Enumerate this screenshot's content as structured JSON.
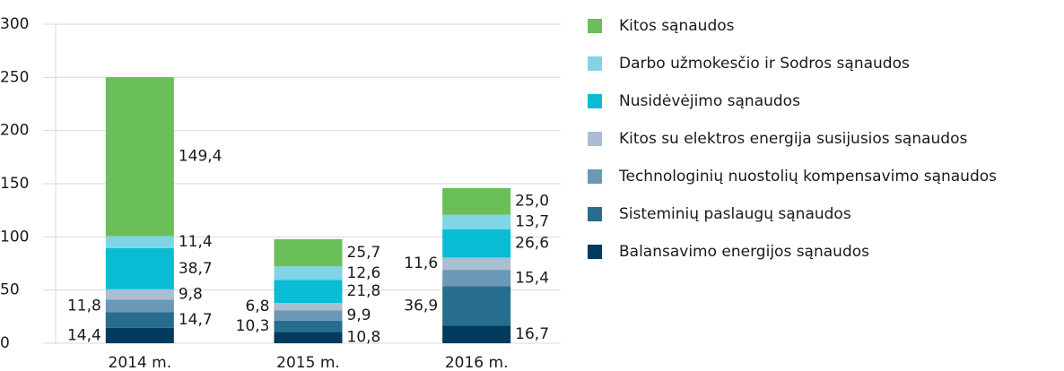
{
  "chart_data": {
    "type": "bar",
    "stacked": true,
    "categories": [
      "2014 m.",
      "2015 m.",
      "2016 m."
    ],
    "series": [
      {
        "name": "Balansavimo energijos sąnaudos",
        "color": "#003a5c",
        "values": [
          14.4,
          10.8,
          16.7
        ],
        "value_labels": [
          "14,4",
          "10,8",
          "16,7"
        ]
      },
      {
        "name": "Sisteminių paslaugų sąnaudos",
        "color": "#276e8e",
        "values": [
          14.7,
          10.3,
          36.9
        ],
        "value_labels": [
          "14,7",
          "10,3",
          "36,9"
        ]
      },
      {
        "name": "Technologinių nuostolių kompensavimo sąnaudos",
        "color": "#6b98b5",
        "values": [
          11.8,
          9.9,
          15.4
        ],
        "value_labels": [
          "11,8",
          "9,9",
          "15,4"
        ]
      },
      {
        "name": "Kitos su elektros energija susijusios sąnaudos",
        "color": "#a9bed2",
        "values": [
          9.8,
          6.8,
          11.6
        ],
        "value_labels": [
          "9,8",
          "6,8",
          "11,6"
        ]
      },
      {
        "name": "Nusidėvėjimo sąnaudos",
        "color": "#08bcd4",
        "values": [
          38.7,
          21.8,
          26.6
        ],
        "value_labels": [
          "38,7",
          "21,8",
          "26,6"
        ]
      },
      {
        "name": "Darbo užmokesčio ir Sodros sąnaudos",
        "color": "#80d4e6",
        "values": [
          11.4,
          12.6,
          13.7
        ],
        "value_labels": [
          "11,4",
          "12,6",
          "13,7"
        ]
      },
      {
        "name": "Kitos sąnaudos",
        "color": "#6abf59",
        "values": [
          149.4,
          25.7,
          25.0
        ],
        "value_labels": [
          "149,4",
          "25,7",
          "25,0"
        ]
      }
    ],
    "ylim": [
      0,
      300
    ],
    "yticks": [
      0,
      50,
      100,
      150,
      200,
      250,
      300
    ],
    "grid": true
  }
}
